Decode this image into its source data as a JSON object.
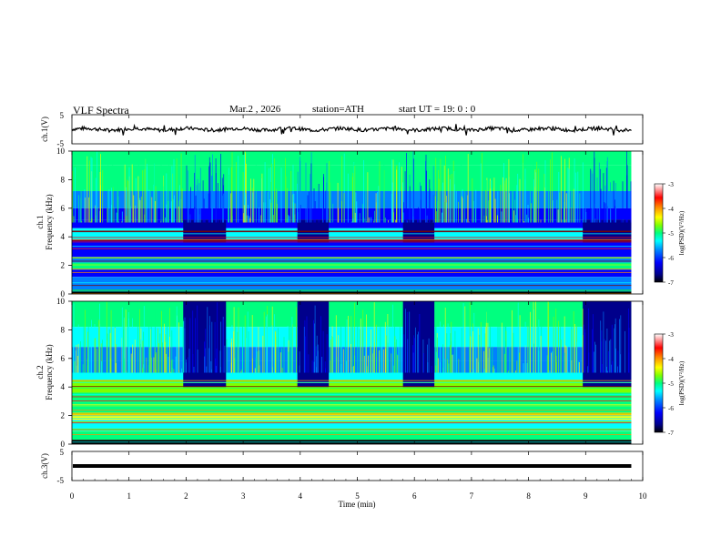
{
  "header": {
    "title": "VLF  Spectra",
    "date": "Mar.2  , 2026",
    "station": "station=ATH",
    "start": "start  UT  =    19: 0  : 0"
  },
  "chart_data": [
    {
      "type": "line",
      "panel": "ch1-waveform",
      "ylabel": "ch.1(V)",
      "ylim": [
        -5,
        5
      ],
      "yticks": [
        "5",
        "-5"
      ],
      "xlim": [
        0,
        10
      ],
      "grid": false
    },
    {
      "type": "heatmap",
      "panel": "ch1-spectrogram",
      "ylabel": "ch.1\nFrequency (kHz)",
      "ylim": [
        0,
        10
      ],
      "yticks": [
        "0",
        "2",
        "4",
        "6",
        "8",
        "10"
      ],
      "xlim": [
        0,
        10
      ],
      "data_end_min": 9.8,
      "quiet_intervals_min": [
        [
          1.95,
          2.7
        ],
        [
          3.95,
          4.5
        ],
        [
          5.8,
          6.35
        ],
        [
          8.95,
          9.8
        ]
      ],
      "colorbar": {
        "label": "log(PSD)(V²/Hz)",
        "ticks": [
          "-3",
          "-4",
          "-5",
          "-6",
          "-7"
        ],
        "range": [
          -7,
          -3
        ]
      }
    },
    {
      "type": "heatmap",
      "panel": "ch2-spectrogram",
      "ylabel": "ch.2\nFrequency (kHz)",
      "ylim": [
        0,
        10
      ],
      "yticks": [
        "0",
        "2",
        "4",
        "6",
        "8",
        "10"
      ],
      "xlim": [
        0,
        10
      ],
      "data_end_min": 9.8,
      "quiet_intervals_min": [
        [
          1.95,
          2.7
        ],
        [
          3.95,
          4.5
        ],
        [
          5.8,
          6.35
        ],
        [
          8.95,
          9.8
        ]
      ],
      "colorbar": {
        "label": "log(PSD)(V²/Hz)",
        "ticks": [
          "-3",
          "-4",
          "-5",
          "-6",
          "-7"
        ],
        "range": [
          -7,
          -3
        ]
      }
    },
    {
      "type": "line",
      "panel": "ch3-waveform",
      "ylabel": "ch.3(V)",
      "ylim": [
        -5,
        5
      ],
      "yticks": [
        "5",
        "-5"
      ],
      "constant_level_V": 0,
      "xlim": [
        0,
        10
      ],
      "xlabel": "Time  (min)",
      "xticks": [
        "0",
        "1",
        "2",
        "3",
        "4",
        "5",
        "6",
        "7",
        "8",
        "9",
        "10"
      ]
    }
  ],
  "colors": {
    "colormap": [
      "#7a0000",
      "#ff0000",
      "#ff8c00",
      "#ffff00",
      "#7fff00",
      "#00ff7f",
      "#00ffff",
      "#0080ff",
      "#0000ff",
      "#00008b",
      "#000000"
    ],
    "waveform": "#000000"
  }
}
